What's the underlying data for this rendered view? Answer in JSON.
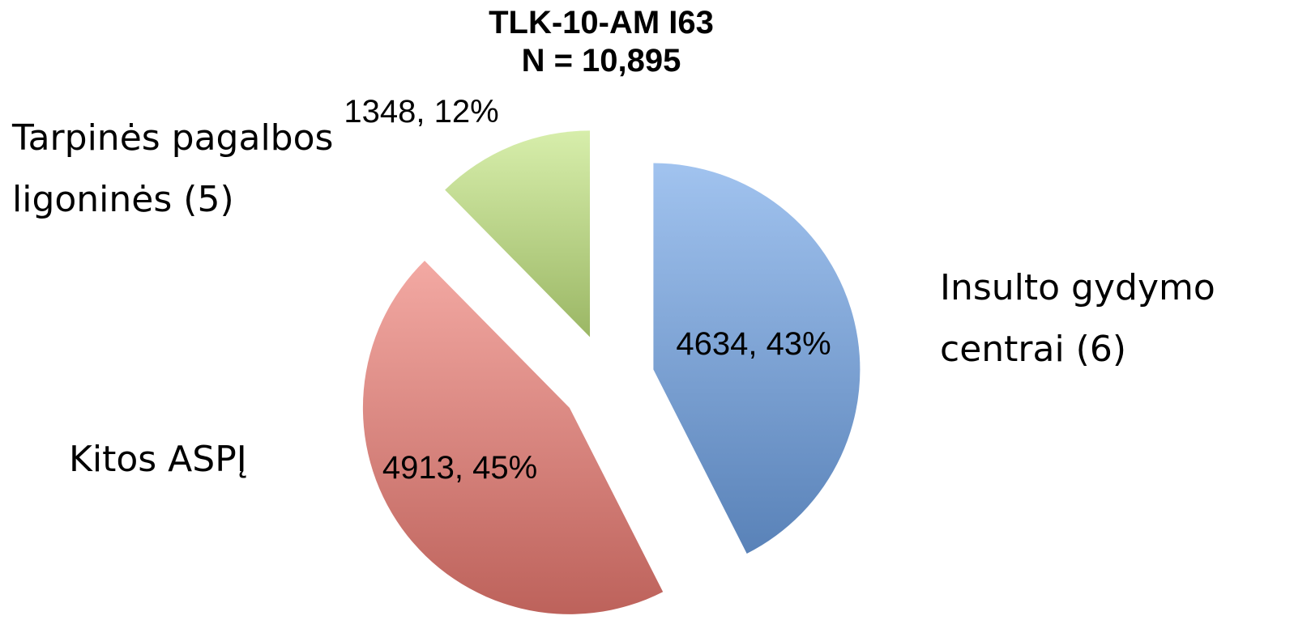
{
  "chart_data": {
    "type": "pie",
    "title": "TLK-10-AM  I63",
    "subtitle": "N = 10,895",
    "categories": [
      "Insulto gydymo centrai (6)",
      "Kitos ASPĮ",
      "Tarpinės pagalbos ligoninės (5)"
    ],
    "values": [
      4634,
      4913,
      1348
    ],
    "value_labels": [
      "4634, 43%",
      "4913, 45%",
      "1348, 12%"
    ],
    "colors": [
      "#6fa3e6",
      "#ec7a72",
      "#c2e57e"
    ]
  }
}
